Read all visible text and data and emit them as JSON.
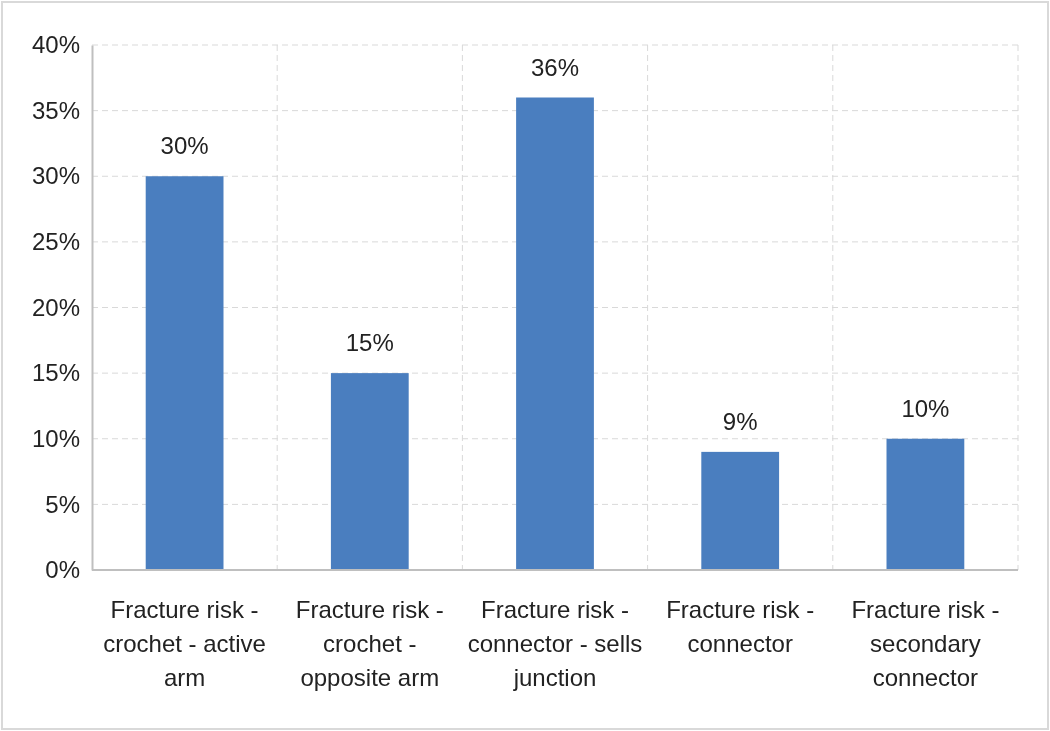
{
  "chart_data": {
    "type": "bar",
    "categories": [
      "Fracture risk - crochet - active arm",
      "Fracture risk - crochet - opposite arm",
      "Fracture risk - connector - sells junction",
      "Fracture risk - connector",
      "Fracture risk - secondary connector"
    ],
    "values": [
      30,
      15,
      36,
      9,
      10
    ],
    "value_labels": [
      "30%",
      "15%",
      "36%",
      "9%",
      "10%"
    ],
    "color": "#4a7ebf",
    "ylim": [
      0,
      40
    ],
    "yticks": [
      {
        "value": 0,
        "label": "0%"
      },
      {
        "value": 5,
        "label": "5%"
      },
      {
        "value": 10,
        "label": "10%"
      },
      {
        "value": 15,
        "label": "15%"
      },
      {
        "value": 20,
        "label": "20%"
      },
      {
        "value": 25,
        "label": "25%"
      },
      {
        "value": 30,
        "label": "30%"
      },
      {
        "value": 35,
        "label": "35%"
      },
      {
        "value": 40,
        "label": "40%"
      }
    ],
    "grid": true
  }
}
